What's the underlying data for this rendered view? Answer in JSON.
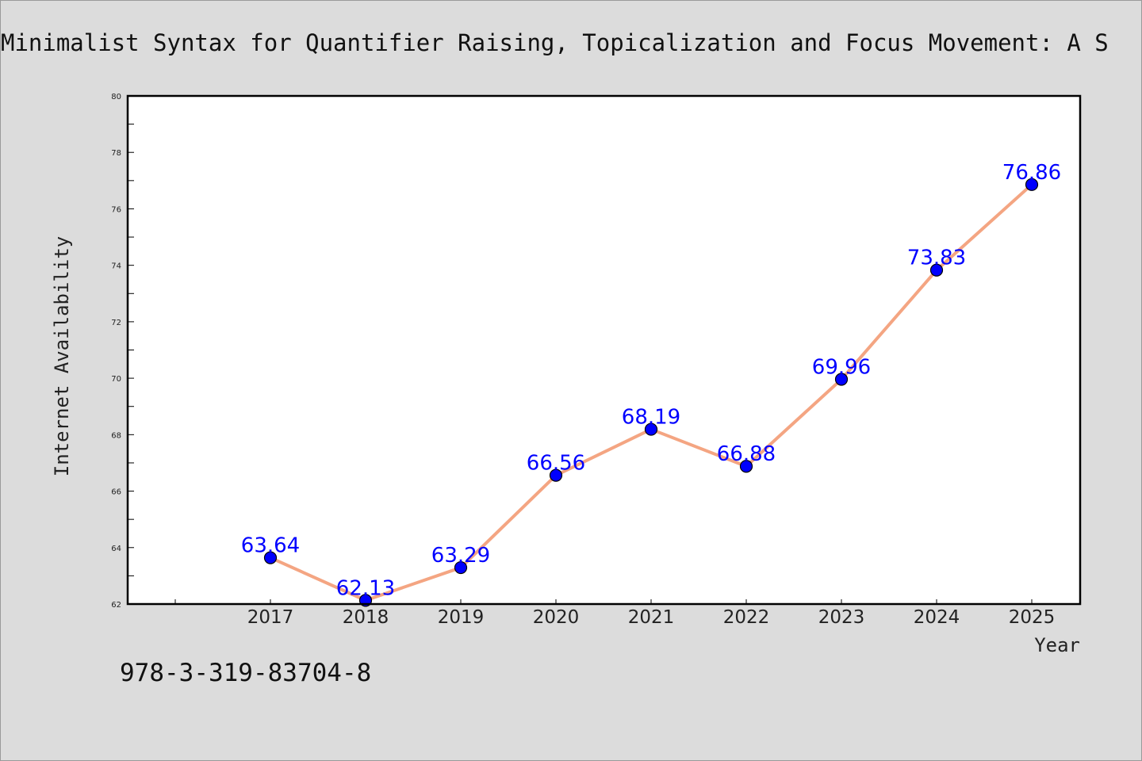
{
  "chart_data": {
    "type": "line",
    "title": "Minimalist Syntax for Quantifier Raising, Topicalization and Focus Movement: A S",
    "xlabel": "Year",
    "ylabel": "Internet Availability",
    "x": [
      "2017",
      "2018",
      "2019",
      "2020",
      "2021",
      "2022",
      "2023",
      "2024",
      "2025"
    ],
    "series": [
      {
        "values": [
          63.64,
          62.13,
          63.29,
          66.56,
          68.19,
          66.88,
          69.96,
          73.83,
          76.86
        ]
      }
    ],
    "data_labels": [
      "63.64",
      "62.13",
      "63.29",
      "66.56",
      "68.19",
      "66.88",
      "69.96",
      "73.83",
      "76.86"
    ],
    "ylim": [
      62,
      80
    ],
    "y_ticks": [
      62,
      64,
      66,
      68,
      70,
      72,
      74,
      76,
      78,
      80
    ],
    "y_tick_labels": [
      "62",
      "64",
      "66",
      "68",
      "70",
      "72",
      "74",
      "76",
      "78",
      "80"
    ],
    "grid": false,
    "line_color": "#f4a582",
    "marker_color": "#0000ff",
    "label_color": "#0000ff"
  },
  "note": "978-3-319-83704-8"
}
